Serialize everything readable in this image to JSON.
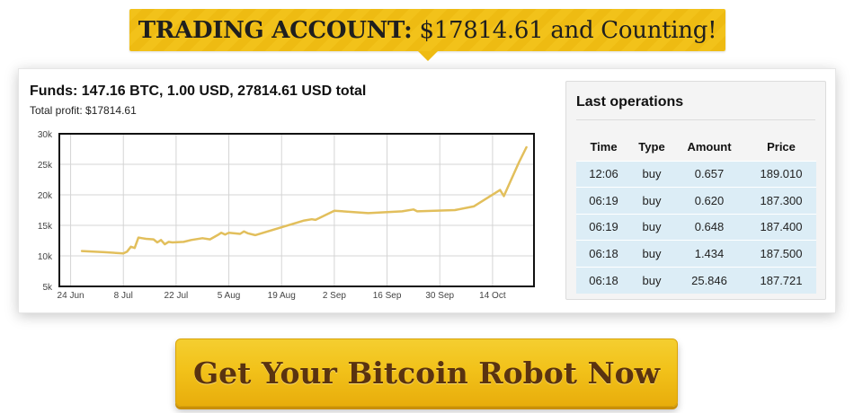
{
  "banner": {
    "strong": "TRADING ACCOUNT:",
    "rest": "$17814.61 and Counting!"
  },
  "account": {
    "funds": "Funds: 147.16 BTC, 1.00 USD, 27814.61 USD total",
    "profit": "Total profit: $17814.61"
  },
  "colors": {
    "banner": "#eebb12",
    "line": "#e2bf5c",
    "ops_row": "#dcedf6",
    "cta_text": "#5a3310"
  },
  "chart_data": {
    "type": "line",
    "xlabel": "",
    "ylabel": "",
    "grid": true,
    "legend": "none",
    "ylim": [
      5000,
      30000
    ],
    "xlim": [
      "2014-06-21",
      "2014-10-25"
    ],
    "y_ticks": [
      5000,
      10000,
      15000,
      20000,
      25000,
      30000
    ],
    "y_tick_labels": [
      "5k",
      "10k",
      "15k",
      "20k",
      "25k",
      "30k"
    ],
    "x_ticks": [
      "2014-06-24",
      "2014-07-08",
      "2014-07-22",
      "2014-08-05",
      "2014-08-19",
      "2014-09-02",
      "2014-09-16",
      "2014-09-30",
      "2014-10-14"
    ],
    "x_tick_labels": [
      "24 Jun",
      "8 Jul",
      "22 Jul",
      "5 Aug",
      "19 Aug",
      "2 Sep",
      "16 Sep",
      "30 Sep",
      "14 Oct"
    ],
    "series": [
      {
        "x": [
          "2014-06-27",
          "2014-07-03",
          "2014-07-08",
          "2014-07-09",
          "2014-07-10",
          "2014-07-11",
          "2014-07-12",
          "2014-07-13",
          "2014-07-14",
          "2014-07-16",
          "2014-07-17",
          "2014-07-18",
          "2014-07-19",
          "2014-07-20",
          "2014-07-21",
          "2014-07-24",
          "2014-07-26",
          "2014-07-29",
          "2014-07-31",
          "2014-08-02",
          "2014-08-03",
          "2014-08-04",
          "2014-08-05",
          "2014-08-08",
          "2014-08-09",
          "2014-08-10",
          "2014-08-12",
          "2014-08-25",
          "2014-08-27",
          "2014-08-28",
          "2014-09-02",
          "2014-09-11",
          "2014-09-20",
          "2014-09-23",
          "2014-09-24",
          "2014-10-04",
          "2014-10-09",
          "2014-10-16",
          "2014-10-17",
          "2014-10-21",
          "2014-10-23"
        ],
        "values": [
          10800,
          10600,
          10400,
          10700,
          11500,
          11300,
          13000,
          12900,
          12800,
          12700,
          12200,
          12600,
          11900,
          12300,
          12200,
          12300,
          12600,
          12900,
          12700,
          13400,
          13800,
          13500,
          13800,
          13600,
          14000,
          13700,
          13400,
          15800,
          16000,
          15900,
          17400,
          17000,
          17300,
          17600,
          17300,
          17500,
          18100,
          20800,
          19800,
          25300,
          27800
        ]
      }
    ]
  },
  "operations": {
    "title": "Last operations",
    "columns": [
      "Time",
      "Type",
      "Amount",
      "Price"
    ],
    "rows": [
      [
        "12:06",
        "buy",
        "0.657",
        "189.010"
      ],
      [
        "06:19",
        "buy",
        "0.620",
        "187.300"
      ],
      [
        "06:19",
        "buy",
        "0.648",
        "187.400"
      ],
      [
        "06:18",
        "buy",
        "1.434",
        "187.500"
      ],
      [
        "06:18",
        "buy",
        "25.846",
        "187.721"
      ]
    ]
  },
  "cta": {
    "label": "Get Your Bitcoin Robot Now"
  }
}
